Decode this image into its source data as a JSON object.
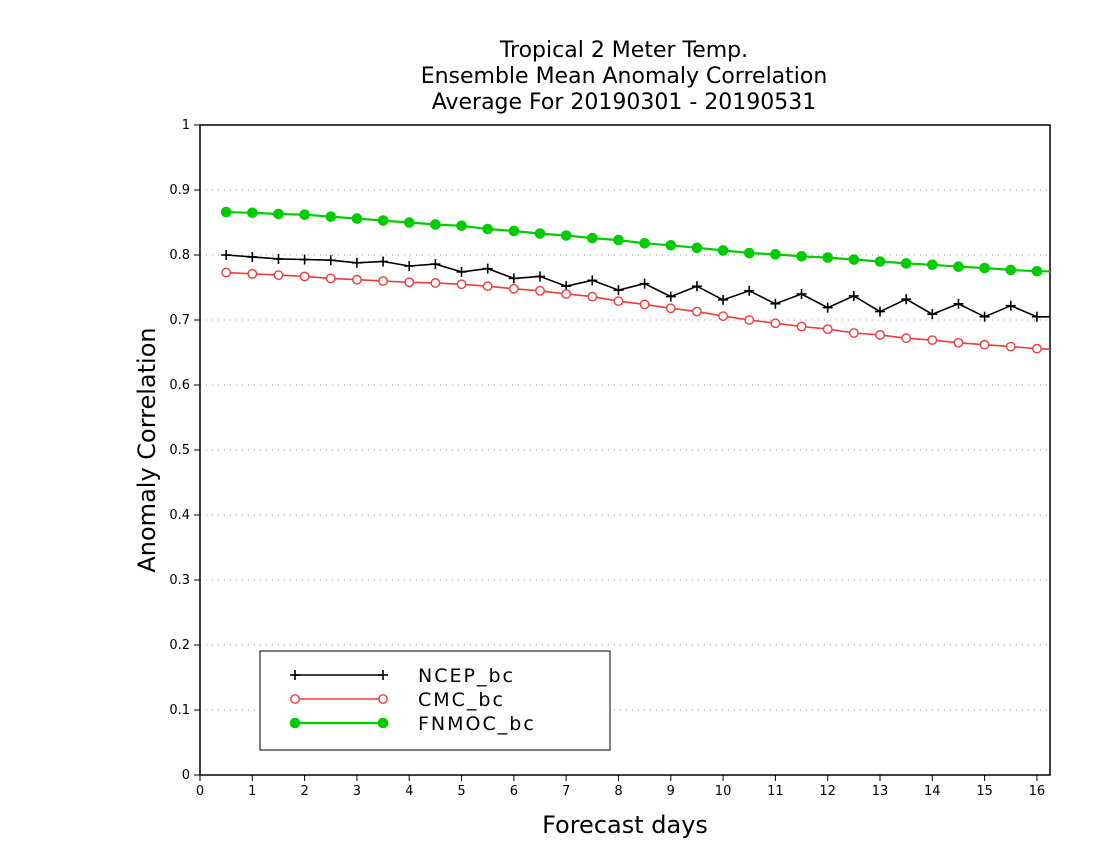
{
  "chart_data": {
    "type": "line",
    "title_lines": [
      "Tropical 2 Meter Temp.",
      "Ensemble Mean Anomaly Correlation",
      "Average For 20190301 - 20190531"
    ],
    "xlabel": "Forecast days",
    "ylabel": "Anomaly Correlation",
    "xlim": [
      0,
      16.25
    ],
    "ylim": [
      0,
      1
    ],
    "xticks": [
      "0",
      "1",
      "2",
      "3",
      "4",
      "5",
      "6",
      "7",
      "8",
      "9",
      "10",
      "11",
      "12",
      "13",
      "14",
      "15",
      "16"
    ],
    "yticks": [
      "0",
      "0.1",
      "0.2",
      "0.3",
      "0.4",
      "0.5",
      "0.6",
      "0.7",
      "0.8",
      "0.9",
      "1"
    ],
    "grid": true,
    "legend_position": "bottom-left",
    "x": [
      0.5,
      1,
      1.5,
      2,
      2.5,
      3,
      3.5,
      4,
      4.5,
      5,
      5.5,
      6,
      6.5,
      7,
      7.5,
      8,
      8.5,
      9,
      9.5,
      10,
      10.5,
      11,
      11.5,
      12,
      12.5,
      13,
      13.5,
      14,
      14.5,
      15,
      15.5,
      16,
      16.25
    ],
    "series": [
      {
        "name": "NCEP_bc",
        "color": "#000000",
        "marker": "plus",
        "values": [
          0.8,
          0.797,
          0.794,
          0.793,
          0.792,
          0.788,
          0.79,
          0.783,
          0.786,
          0.774,
          0.779,
          0.764,
          0.767,
          0.752,
          0.761,
          0.746,
          0.756,
          0.736,
          0.752,
          0.731,
          0.745,
          0.725,
          0.74,
          0.719,
          0.737,
          0.713,
          0.732,
          0.709,
          0.725,
          0.705,
          0.722,
          0.705,
          0.705
        ]
      },
      {
        "name": "CMC_bc",
        "color": "#ee3b3b",
        "marker": "open-circle",
        "values": [
          0.773,
          0.771,
          0.769,
          0.767,
          0.764,
          0.762,
          0.76,
          0.758,
          0.757,
          0.755,
          0.752,
          0.748,
          0.745,
          0.74,
          0.736,
          0.729,
          0.724,
          0.718,
          0.713,
          0.706,
          0.7,
          0.695,
          0.69,
          0.686,
          0.68,
          0.677,
          0.672,
          0.669,
          0.665,
          0.662,
          0.659,
          0.656,
          0.655
        ]
      },
      {
        "name": "FNMOC_bc",
        "color": "#00cc00",
        "marker": "filled-circle",
        "values": [
          0.866,
          0.865,
          0.863,
          0.862,
          0.859,
          0.856,
          0.853,
          0.85,
          0.847,
          0.845,
          0.84,
          0.837,
          0.833,
          0.83,
          0.826,
          0.823,
          0.818,
          0.815,
          0.811,
          0.807,
          0.803,
          0.801,
          0.798,
          0.796,
          0.793,
          0.79,
          0.787,
          0.785,
          0.782,
          0.78,
          0.777,
          0.775,
          0.775
        ]
      }
    ]
  }
}
